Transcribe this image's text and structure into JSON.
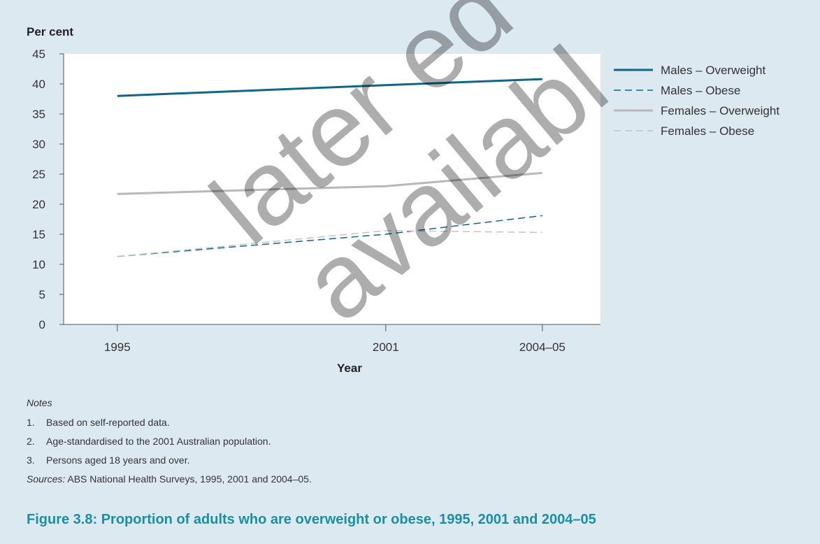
{
  "chart_data": {
    "type": "line",
    "ylabel": "Per cent",
    "xlabel": "Year",
    "ylim": [
      0,
      45
    ],
    "y_ticks": [
      0,
      5,
      10,
      15,
      20,
      25,
      30,
      35,
      40,
      45
    ],
    "x_ticks": [
      "1995",
      "2001",
      "2004–05"
    ],
    "x": [
      1995,
      2001,
      2004.5
    ],
    "grid": false,
    "legend_position": "right",
    "series": [
      {
        "name": "Males – Overweight",
        "values": [
          38,
          39.8,
          40.8
        ],
        "color": "#0f6688",
        "style": "solid",
        "width": 3
      },
      {
        "name": "Males – Obese",
        "values": [
          11.3,
          15,
          18.1
        ],
        "color": "#0f6688",
        "style": "dashed",
        "width": 1.5
      },
      {
        "name": "Females – Overweight",
        "values": [
          21.7,
          23,
          25.2
        ],
        "color": "#b8b8b8",
        "style": "solid",
        "width": 3
      },
      {
        "name": "Females – Obese",
        "values": [
          11.3,
          15.6,
          15.3
        ],
        "color": "#c4c4c4",
        "style": "dashed",
        "width": 1.5
      }
    ]
  },
  "watermark": {
    "line1": "later ed",
    "line2": "availabl"
  },
  "notes": {
    "heading": "Notes",
    "items": [
      {
        "num": "1.",
        "text": "Based on self-reported data."
      },
      {
        "num": "2.",
        "text": "Age-standardised to the 2001 Australian population."
      },
      {
        "num": "3.",
        "text": "Persons aged 18 years and over."
      }
    ],
    "sources_lead": "Sources:",
    "sources_text": " ABS National Health Surveys, 1995, 2001 and 2004–05."
  },
  "caption": "Figure 3.8: Proportion of adults who are overweight or obese, 1995, 2001 and 2004–05"
}
